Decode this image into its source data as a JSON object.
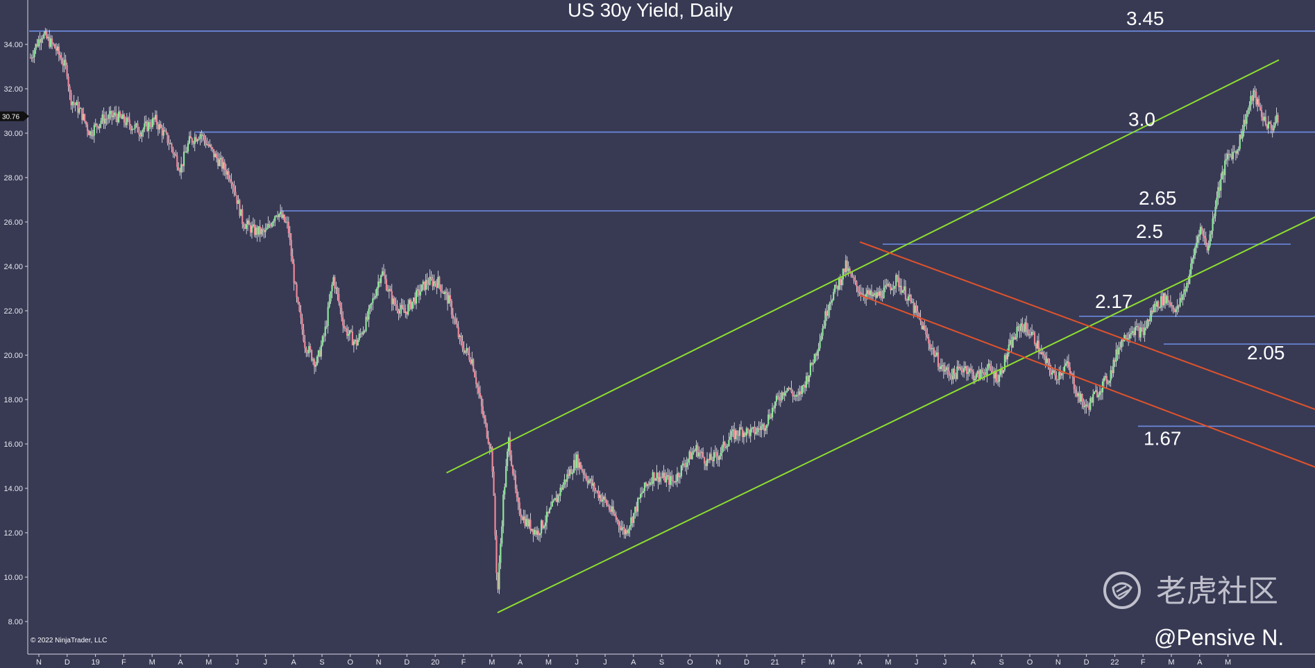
{
  "chart_data": {
    "type": "candlestick",
    "title": "US 30y Yield, Daily",
    "y_unit_note": "",
    "ylim": [
      7.2,
      35.5
    ],
    "y_ticks": [
      "34.00",
      "32.00",
      "30.00",
      "28.00",
      "26.00",
      "24.00",
      "22.00",
      "20.00",
      "18.00",
      "16.00",
      "14.00",
      "12.00",
      "10.00",
      "8.00"
    ],
    "x_ticks": [
      "N",
      "D",
      "19",
      "F",
      "M",
      "A",
      "M",
      "J",
      "J",
      "A",
      "S",
      "O",
      "N",
      "D",
      "20",
      "F",
      "M",
      "A",
      "M",
      "J",
      "J",
      "A",
      "S",
      "O",
      "N",
      "D",
      "21",
      "F",
      "M",
      "A",
      "M",
      "J",
      "J",
      "A",
      "S",
      "O",
      "N",
      "D",
      "22",
      "F",
      "M",
      "A",
      "M"
    ],
    "x_range_months": [
      0,
      46.6
    ],
    "current_price": "30.76",
    "approx_path": [
      {
        "m": -0.3,
        "y": 33.4
      },
      {
        "m": 0.1,
        "y": 34.5
      },
      {
        "m": 0.6,
        "y": 33.8
      },
      {
        "m": 1.0,
        "y": 32.8
      },
      {
        "m": 1.1,
        "y": 31.6
      },
      {
        "m": 1.5,
        "y": 30.9
      },
      {
        "m": 1.8,
        "y": 30.0
      },
      {
        "m": 2.2,
        "y": 30.6
      },
      {
        "m": 2.7,
        "y": 30.8
      },
      {
        "m": 3.2,
        "y": 30.4
      },
      {
        "m": 3.6,
        "y": 30.1
      },
      {
        "m": 4.1,
        "y": 30.6
      },
      {
        "m": 4.6,
        "y": 29.6
      },
      {
        "m": 5.0,
        "y": 28.4
      },
      {
        "m": 5.3,
        "y": 29.6
      },
      {
        "m": 5.7,
        "y": 30.0
      },
      {
        "m": 6.2,
        "y": 29.0
      },
      {
        "m": 6.8,
        "y": 28.0
      },
      {
        "m": 7.2,
        "y": 26.0
      },
      {
        "m": 7.6,
        "y": 25.6
      },
      {
        "m": 8.0,
        "y": 25.5
      },
      {
        "m": 8.4,
        "y": 26.5
      },
      {
        "m": 8.8,
        "y": 25.8
      },
      {
        "m": 9.1,
        "y": 22.5
      },
      {
        "m": 9.4,
        "y": 20.5
      },
      {
        "m": 9.8,
        "y": 19.6
      },
      {
        "m": 10.1,
        "y": 21.0
      },
      {
        "m": 10.4,
        "y": 23.5
      },
      {
        "m": 10.8,
        "y": 21.2
      },
      {
        "m": 11.2,
        "y": 20.5
      },
      {
        "m": 11.6,
        "y": 21.6
      },
      {
        "m": 12.1,
        "y": 23.8
      },
      {
        "m": 12.5,
        "y": 22.4
      },
      {
        "m": 12.9,
        "y": 21.9
      },
      {
        "m": 13.3,
        "y": 22.6
      },
      {
        "m": 13.7,
        "y": 23.3
      },
      {
        "m": 14.1,
        "y": 23.3
      },
      {
        "m": 14.5,
        "y": 22.4
      },
      {
        "m": 14.9,
        "y": 20.5
      },
      {
        "m": 15.3,
        "y": 19.8
      },
      {
        "m": 15.7,
        "y": 17.2
      },
      {
        "m": 16.0,
        "y": 15.6
      },
      {
        "m": 16.2,
        "y": 9.2
      },
      {
        "m": 16.4,
        "y": 13.5
      },
      {
        "m": 16.6,
        "y": 16.2
      },
      {
        "m": 16.9,
        "y": 13.2
      },
      {
        "m": 17.2,
        "y": 12.5
      },
      {
        "m": 17.6,
        "y": 12.0
      },
      {
        "m": 18.0,
        "y": 12.8
      },
      {
        "m": 18.3,
        "y": 13.6
      },
      {
        "m": 18.6,
        "y": 14.4
      },
      {
        "m": 19.0,
        "y": 15.3
      },
      {
        "m": 19.3,
        "y": 14.6
      },
      {
        "m": 19.6,
        "y": 14.0
      },
      {
        "m": 20.0,
        "y": 13.4
      },
      {
        "m": 20.4,
        "y": 12.6
      },
      {
        "m": 20.7,
        "y": 12.0
      },
      {
        "m": 21.0,
        "y": 12.8
      },
      {
        "m": 21.3,
        "y": 13.8
      },
      {
        "m": 21.7,
        "y": 14.6
      },
      {
        "m": 22.0,
        "y": 14.5
      },
      {
        "m": 22.4,
        "y": 14.3
      },
      {
        "m": 22.8,
        "y": 15.1
      },
      {
        "m": 23.2,
        "y": 15.8
      },
      {
        "m": 23.6,
        "y": 15.2
      },
      {
        "m": 24.0,
        "y": 15.5
      },
      {
        "m": 24.4,
        "y": 16.3
      },
      {
        "m": 24.8,
        "y": 16.6
      },
      {
        "m": 25.2,
        "y": 16.5
      },
      {
        "m": 25.6,
        "y": 16.8
      },
      {
        "m": 26.0,
        "y": 17.8
      },
      {
        "m": 26.4,
        "y": 18.6
      },
      {
        "m": 26.8,
        "y": 18.0
      },
      {
        "m": 27.2,
        "y": 19.2
      },
      {
        "m": 27.6,
        "y": 20.8
      },
      {
        "m": 27.9,
        "y": 22.4
      },
      {
        "m": 28.2,
        "y": 23.1
      },
      {
        "m": 28.5,
        "y": 24.0
      },
      {
        "m": 28.8,
        "y": 23.2
      },
      {
        "m": 29.1,
        "y": 22.8
      },
      {
        "m": 29.5,
        "y": 22.6
      },
      {
        "m": 29.9,
        "y": 22.9
      },
      {
        "m": 30.3,
        "y": 23.4
      },
      {
        "m": 30.7,
        "y": 22.6
      },
      {
        "m": 31.1,
        "y": 21.6
      },
      {
        "m": 31.5,
        "y": 20.4
      },
      {
        "m": 31.9,
        "y": 19.4
      },
      {
        "m": 32.3,
        "y": 19.1
      },
      {
        "m": 32.7,
        "y": 19.5
      },
      {
        "m": 33.1,
        "y": 19.0
      },
      {
        "m": 33.5,
        "y": 19.4
      },
      {
        "m": 33.9,
        "y": 19.0
      },
      {
        "m": 34.3,
        "y": 20.4
      },
      {
        "m": 34.7,
        "y": 21.4
      },
      {
        "m": 35.1,
        "y": 20.9
      },
      {
        "m": 35.5,
        "y": 19.8
      },
      {
        "m": 35.9,
        "y": 19.0
      },
      {
        "m": 36.3,
        "y": 19.6
      },
      {
        "m": 36.7,
        "y": 18.2
      },
      {
        "m": 37.0,
        "y": 17.6
      },
      {
        "m": 37.4,
        "y": 18.4
      },
      {
        "m": 37.8,
        "y": 19.0
      },
      {
        "m": 38.2,
        "y": 20.6
      },
      {
        "m": 38.6,
        "y": 21.2
      },
      {
        "m": 39.0,
        "y": 21.0
      },
      {
        "m": 39.4,
        "y": 22.2
      },
      {
        "m": 39.8,
        "y": 22.6
      },
      {
        "m": 40.2,
        "y": 22.0
      },
      {
        "m": 40.6,
        "y": 23.4
      },
      {
        "m": 41.0,
        "y": 25.8
      },
      {
        "m": 41.3,
        "y": 24.8
      },
      {
        "m": 41.6,
        "y": 27.2
      },
      {
        "m": 42.0,
        "y": 29.0
      },
      {
        "m": 42.3,
        "y": 29.2
      },
      {
        "m": 42.6,
        "y": 30.6
      },
      {
        "m": 42.9,
        "y": 31.8
      },
      {
        "m": 43.2,
        "y": 30.8
      },
      {
        "m": 43.5,
        "y": 30.2
      },
      {
        "m": 43.8,
        "y": 30.7
      }
    ],
    "levels": [
      {
        "label": "3.45",
        "y": 34.6
      },
      {
        "label": "3.0",
        "y": 30.05
      },
      {
        "label": "2.65",
        "y": 26.5
      },
      {
        "label": "2.5",
        "y": 25.0
      },
      {
        "label": "2.17",
        "y": 21.75
      },
      {
        "label": "2.05",
        "y": 20.5
      },
      {
        "label": "1.67",
        "y": 16.8
      }
    ],
    "trend_channels": [
      {
        "color": "#8ee02e",
        "from": {
          "m": 14.4,
          "y": 14.7
        },
        "to": {
          "m": 43.8,
          "y": 33.3
        }
      },
      {
        "color": "#8ee02e",
        "from": {
          "m": 16.2,
          "y": 8.4
        },
        "to": {
          "m": 45.2,
          "y": 26.3
        }
      },
      {
        "color": "#e2532a",
        "from": {
          "m": 29.0,
          "y": 25.1
        },
        "to": {
          "m": 45.2,
          "y": 17.5
        }
      },
      {
        "color": "#e2532a",
        "from": {
          "m": 29.0,
          "y": 22.7
        },
        "to": {
          "m": 45.2,
          "y": 14.9
        }
      }
    ]
  },
  "colors": {
    "background": "#383a54",
    "level_line": "#6f8ee6",
    "up_candle": "#8ee89a",
    "down_candle": "#ee8899",
    "wick": "#f2f2f2"
  },
  "copyright": "© 2022 NinjaTrader, LLC",
  "watermark": {
    "text": "老虎社区",
    "icon": "tiger-community-logo-icon"
  },
  "author": "@Pensive N."
}
